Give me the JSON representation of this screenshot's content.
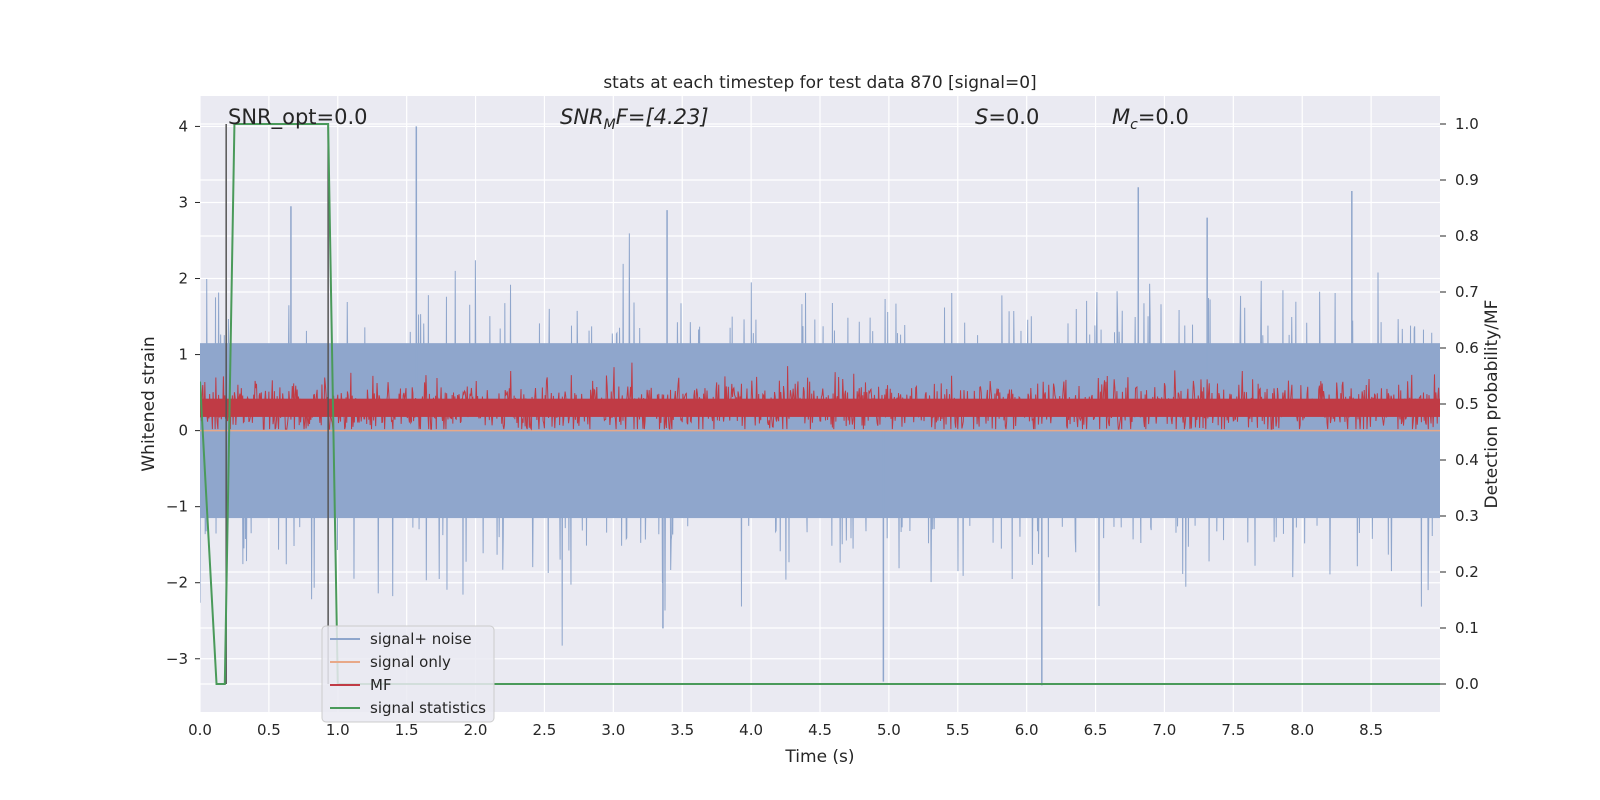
{
  "chart_data": {
    "type": "line",
    "title": "stats at each timestep for test data 870 [signal=0]",
    "xlabel": "Time (s)",
    "ylabel_left": "Whitened strain",
    "ylabel_right": "Detection probability/MF",
    "xlim": [
      0,
      9.0
    ],
    "ylim_left": [
      -3.7,
      4.4
    ],
    "ylim_right": [
      -0.05,
      1.05
    ],
    "xticks": [
      "0.0",
      "0.5",
      "1.0",
      "1.5",
      "2.0",
      "2.5",
      "3.0",
      "3.5",
      "4.0",
      "4.5",
      "5.0",
      "5.5",
      "6.0",
      "6.5",
      "7.0",
      "7.5",
      "8.0",
      "8.5"
    ],
    "xtick_values": [
      0,
      0.5,
      1.0,
      1.5,
      2.0,
      2.5,
      3.0,
      3.5,
      4.0,
      4.5,
      5.0,
      5.5,
      6.0,
      6.5,
      7.0,
      7.5,
      8.0,
      8.5
    ],
    "yticks_left": [
      "4",
      "3",
      "2",
      "1",
      "0",
      "−1",
      "−2",
      "−3"
    ],
    "ytick_values_left": [
      4,
      3,
      2,
      1,
      0,
      -1,
      -2,
      -3
    ],
    "yticks_right": [
      "1.0",
      "0.9",
      "0.8",
      "0.7",
      "0.6",
      "0.5",
      "0.4",
      "0.3",
      "0.2",
      "0.1",
      "0.0"
    ],
    "ytick_values_right": [
      1.0,
      0.9,
      0.8,
      0.7,
      0.6,
      0.5,
      0.4,
      0.3,
      0.2,
      0.1,
      0.0
    ],
    "grid": true,
    "legend_placement": "lower-left",
    "annotations": {
      "snr_opt": "SNR_opt=0.0",
      "snr_mf_prefix": "SNR",
      "snr_mf_sub": "M",
      "snr_mf_suffix": "F=[4.23]",
      "s_label": "S",
      "s_suffix": "=0.0",
      "mc_label": "M",
      "mc_sub": "c",
      "mc_suffix": "=0.0"
    },
    "noise_spikes": [
      {
        "t": 1.57,
        "v": 4.0
      },
      {
        "t": 6.81,
        "v": 3.2
      },
      {
        "t": 8.36,
        "v": 3.15
      },
      {
        "t": 0.66,
        "v": 2.95
      },
      {
        "t": 3.39,
        "v": 2.9
      },
      {
        "t": 4.96,
        "v": -3.3
      },
      {
        "t": 6.11,
        "v": -3.35
      },
      {
        "t": 3.36,
        "v": -2.6
      },
      {
        "t": 7.31,
        "v": 2.8
      }
    ],
    "mf_band": {
      "low": 0.0,
      "mean": 0.3,
      "high": 0.95
    },
    "series": [
      {
        "name": "signal+ noise",
        "color": "#8fa6cc",
        "amplitude": 1.15
      },
      {
        "name": "signal only",
        "color": "#e8a888",
        "values": "flat at 0"
      },
      {
        "name": "MF",
        "color": "#c03b45"
      },
      {
        "name": "signal statistics",
        "color": "#4a9a5a",
        "x": [
          0.0,
          0.12,
          0.18,
          0.25,
          0.93,
          1.0,
          9.0
        ],
        "y": [
          0.54,
          0.0,
          0.0,
          1.0,
          1.0,
          0.0,
          0.0
        ]
      }
    ],
    "vertical_markers": [
      0.19,
      0.93
    ],
    "colors": {
      "background": "#eaeaf2",
      "grid": "#ffffff",
      "marker": "#555555"
    }
  }
}
